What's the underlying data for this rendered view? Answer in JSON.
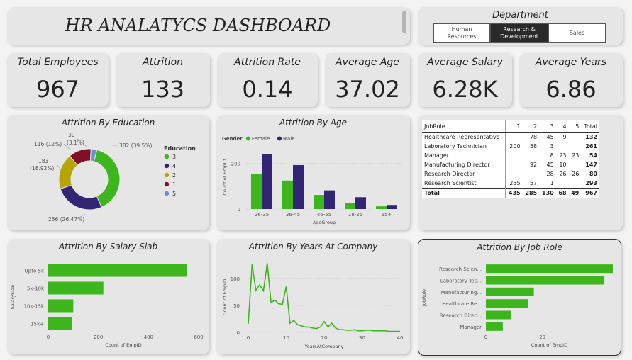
{
  "header": {
    "title": "HR ANALATYCS DASHBOARD"
  },
  "department": {
    "label": "Department",
    "options": [
      {
        "label_l1": "Human",
        "label_l2": "Resources",
        "selected": false
      },
      {
        "label_l1": "Research &",
        "label_l2": "Development",
        "selected": true
      },
      {
        "label_l1": "Sales",
        "label_l2": "",
        "selected": false
      }
    ]
  },
  "kpis": [
    {
      "label": "Total Employees",
      "value": "967"
    },
    {
      "label": "Attrition",
      "value": "133"
    },
    {
      "label": "Attrition Rate",
      "value": "0.14"
    },
    {
      "label": "Average Age",
      "value": "37.02"
    },
    {
      "label": "Average Salary",
      "value": "6.28K"
    },
    {
      "label": "Average Years",
      "value": "6.86"
    }
  ],
  "colors": {
    "green": "#3db61e",
    "purple": "#322574",
    "olive": "#b5a506",
    "maroon": "#7d0f26",
    "blue": "#6a8ed6"
  },
  "table": {
    "headers": [
      "JobRole",
      "1",
      "2",
      "3",
      "4",
      "5",
      "Total"
    ],
    "rows": [
      [
        "Healthcare Representative",
        "",
        "78",
        "45",
        "9",
        "",
        "132"
      ],
      [
        "Laboratory Technician",
        "200",
        "58",
        "3",
        "",
        "",
        "261"
      ],
      [
        "Manager",
        "",
        "",
        "8",
        "23",
        "23",
        "54"
      ],
      [
        "Manufacturing Director",
        "",
        "92",
        "45",
        "10",
        "",
        "147"
      ],
      [
        "Research Director",
        "",
        "",
        "28",
        "26",
        "26",
        "80"
      ],
      [
        "Research Scientist",
        "235",
        "57",
        "1",
        "",
        "",
        "293"
      ]
    ],
    "total": [
      "Total",
      "435",
      "285",
      "130",
      "68",
      "49",
      "967"
    ]
  },
  "chart_data": [
    {
      "id": "education",
      "type": "pie",
      "title": "Attrition By Education",
      "legend_title": "Education",
      "slices": [
        {
          "label": "3",
          "value": 382,
          "text": "382 (39.5%)",
          "color": "#3db61e"
        },
        {
          "label": "4",
          "value": 256,
          "text": "256 (26.47%)",
          "color": "#322574"
        },
        {
          "label": "2",
          "value": 183,
          "text_l1": "183",
          "text_l2": "(18.92%)",
          "color": "#b5a506"
        },
        {
          "label": "1",
          "value": 116,
          "text": "116 (12%)",
          "color": "#7d0f26"
        },
        {
          "label": "5",
          "value": 30,
          "text_l1": "30",
          "text_l2": "(3.1%)",
          "color": "#6a8ed6"
        }
      ]
    },
    {
      "id": "age",
      "type": "bar",
      "title": "Attrition By Age",
      "legend_title": "Gender",
      "xlabel": "AgeGroup",
      "ylabel": "Count of EmpID",
      "categories": [
        "26-35",
        "36-45",
        "46-55",
        "18-25",
        "55+"
      ],
      "series": [
        {
          "name": "Female",
          "color": "#3db61e",
          "values": [
            155,
            125,
            62,
            25,
            12
          ]
        },
        {
          "name": "Male",
          "color": "#322574",
          "values": [
            240,
            193,
            82,
            52,
            18
          ]
        }
      ],
      "ylim": [
        0,
        280
      ],
      "yticks": [
        "0",
        "200"
      ],
      "ytick_values": [
        0,
        200
      ]
    },
    {
      "id": "salary",
      "type": "bar",
      "orientation": "horizontal",
      "title": "Attrition By Salary Slab",
      "xlabel": "Count of EmpID",
      "ylabel": "SalarySlab",
      "categories": [
        "Upto 5k",
        "5k-10k",
        "10k-15k",
        "15k+"
      ],
      "values": [
        555,
        220,
        100,
        95
      ],
      "xlim": [
        0,
        600
      ],
      "xticks": [
        "0",
        "200",
        "400",
        "600"
      ],
      "xtick_values": [
        0,
        200,
        400,
        600
      ]
    },
    {
      "id": "years",
      "type": "line",
      "title": "Attrition By Years At Company",
      "xlabel": "YearsAtCompany",
      "ylabel": "Count of EmpID",
      "x": [
        0,
        1,
        2,
        3,
        4,
        5,
        6,
        7,
        8,
        9,
        10,
        11,
        12,
        13,
        14,
        15,
        16,
        17,
        18,
        19,
        20,
        21,
        22,
        23,
        24,
        25,
        26,
        27,
        28,
        29,
        30,
        31,
        32,
        33,
        34,
        35,
        36,
        37,
        38,
        39,
        40
      ],
      "y": [
        16,
        126,
        78,
        88,
        77,
        128,
        55,
        60,
        53,
        52,
        85,
        17,
        22,
        14,
        12,
        10,
        10,
        8,
        7,
        10,
        20,
        10,
        17,
        8,
        5,
        5,
        4,
        4,
        5,
        3,
        3,
        4,
        4,
        3,
        3,
        3,
        3,
        2,
        2,
        2,
        2
      ],
      "xlim": [
        0,
        40
      ],
      "ylim": [
        0,
        130
      ],
      "xticks": [
        "0",
        "10",
        "20",
        "30",
        "40"
      ],
      "xtick_values": [
        0,
        10,
        20,
        30,
        40
      ],
      "yticks": [
        "0",
        "50",
        "100"
      ],
      "ytick_values": [
        0,
        50,
        100
      ],
      "color": "#3db61e"
    },
    {
      "id": "jobrole",
      "type": "bar",
      "orientation": "horizontal",
      "title": "Attrition By Job Role",
      "xlabel": "Count of EmpID",
      "ylabel": "JobRole",
      "categories": [
        "Research Scien...",
        "Laboratory Tec...",
        "Manufacturing...",
        "Healthcare Re...",
        "Research Direc...",
        "Manager"
      ],
      "values": [
        45,
        42,
        17,
        15,
        9,
        6
      ],
      "xlim": [
        0,
        45
      ],
      "xticks": [
        "0",
        "20"
      ],
      "xtick_values": [
        0,
        20
      ]
    }
  ]
}
